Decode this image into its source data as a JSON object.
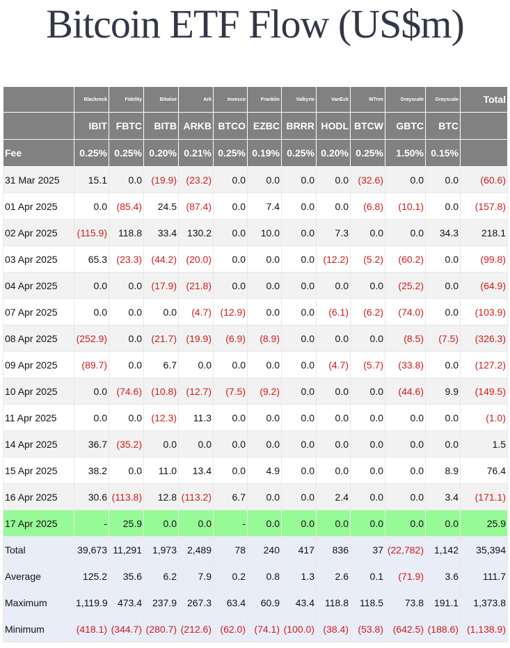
{
  "title": "Bitcoin ETF Flow (US$m)",
  "colors": {
    "negative": "#d11a1a",
    "header_bg": "#818181",
    "highlight_row": "#96fa96",
    "stats_bg": "#e9edf8",
    "title": "#333647"
  },
  "header": {
    "issuers": [
      "Blackrock",
      "Fidelity",
      "Bitwise",
      "Ark",
      "Invesco",
      "Franklin",
      "Valkyrie",
      "VanEck",
      "WTree",
      "Grayscale",
      "Grayscale"
    ],
    "total_label": "Total",
    "tickers": [
      "IBIT",
      "FBTC",
      "BITB",
      "ARKB",
      "BTCO",
      "EZBC",
      "BRRR",
      "HODL",
      "BTCW",
      "GBTC",
      "BTC"
    ],
    "fee_label": "Fee",
    "fees": [
      "0.25%",
      "0.25%",
      "0.20%",
      "0.21%",
      "0.25%",
      "0.19%",
      "0.25%",
      "0.20%",
      "0.25%",
      "1.50%",
      "0.15%"
    ]
  },
  "rows": [
    {
      "date": "31 Mar 2025",
      "values": [
        "15.1",
        "0.0",
        "(19.9)",
        "(23.2)",
        "0.0",
        "0.0",
        "0.0",
        "0.0",
        "(32.6)",
        "0.0",
        "0.0",
        "(60.6)"
      ]
    },
    {
      "date": "01 Apr 2025",
      "values": [
        "0.0",
        "(85.4)",
        "24.5",
        "(87.4)",
        "0.0",
        "7.4",
        "0.0",
        "0.0",
        "(6.8)",
        "(10.1)",
        "0.0",
        "(157.8)"
      ]
    },
    {
      "date": "02 Apr 2025",
      "values": [
        "(115.9)",
        "118.8",
        "33.4",
        "130.2",
        "0.0",
        "10.0",
        "0.0",
        "7.3",
        "0.0",
        "0.0",
        "34.3",
        "218.1"
      ]
    },
    {
      "date": "03 Apr 2025",
      "values": [
        "65.3",
        "(23.3)",
        "(44.2)",
        "(20.0)",
        "0.0",
        "0.0",
        "0.0",
        "(12.2)",
        "(5.2)",
        "(60.2)",
        "0.0",
        "(99.8)"
      ]
    },
    {
      "date": "04 Apr 2025",
      "values": [
        "0.0",
        "0.0",
        "(17.9)",
        "(21.8)",
        "0.0",
        "0.0",
        "0.0",
        "0.0",
        "0.0",
        "(25.2)",
        "0.0",
        "(64.9)"
      ]
    },
    {
      "date": "07 Apr 2025",
      "values": [
        "0.0",
        "0.0",
        "0.0",
        "(4.7)",
        "(12.9)",
        "0.0",
        "0.0",
        "(6.1)",
        "(6.2)",
        "(74.0)",
        "0.0",
        "(103.9)"
      ]
    },
    {
      "date": "08 Apr 2025",
      "values": [
        "(252.9)",
        "0.0",
        "(21.7)",
        "(19.9)",
        "(6.9)",
        "(8.9)",
        "0.0",
        "0.0",
        "0.0",
        "(8.5)",
        "(7.5)",
        "(326.3)"
      ]
    },
    {
      "date": "09 Apr 2025",
      "values": [
        "(89.7)",
        "0.0",
        "6.7",
        "0.0",
        "0.0",
        "0.0",
        "0.0",
        "(4.7)",
        "(5.7)",
        "(33.8)",
        "0.0",
        "(127.2)"
      ]
    },
    {
      "date": "10 Apr 2025",
      "values": [
        "0.0",
        "(74.6)",
        "(10.8)",
        "(12.7)",
        "(7.5)",
        "(9.2)",
        "0.0",
        "0.0",
        "0.0",
        "(44.6)",
        "9.9",
        "(149.5)"
      ]
    },
    {
      "date": "11 Apr 2025",
      "values": [
        "0.0",
        "0.0",
        "(12.3)",
        "11.3",
        "0.0",
        "0.0",
        "0.0",
        "0.0",
        "0.0",
        "0.0",
        "0.0",
        "(1.0)"
      ]
    },
    {
      "date": "14 Apr 2025",
      "values": [
        "36.7",
        "(35.2)",
        "0.0",
        "0.0",
        "0.0",
        "0.0",
        "0.0",
        "0.0",
        "0.0",
        "0.0",
        "0.0",
        "1.5"
      ]
    },
    {
      "date": "15 Apr 2025",
      "values": [
        "38.2",
        "0.0",
        "11.0",
        "13.4",
        "0.0",
        "4.9",
        "0.0",
        "0.0",
        "0.0",
        "0.0",
        "8.9",
        "76.4"
      ]
    },
    {
      "date": "16 Apr 2025",
      "values": [
        "30.6",
        "(113.8)",
        "12.8",
        "(113.2)",
        "6.7",
        "0.0",
        "0.0",
        "2.4",
        "0.0",
        "0.0",
        "3.4",
        "(171.1)"
      ]
    },
    {
      "date": "17 Apr 2025",
      "values": [
        "-",
        "25.9",
        "0.0",
        "0.0",
        "-",
        "0.0",
        "0.0",
        "0.0",
        "0.0",
        "0.0",
        "0.0",
        "25.9"
      ],
      "highlight": true
    }
  ],
  "stats": [
    {
      "label": "Total",
      "values": [
        "39,673",
        "11,291",
        "1,973",
        "2,489",
        "78",
        "240",
        "417",
        "836",
        "37",
        "(22,782)",
        "1,142",
        "35,394"
      ]
    },
    {
      "label": "Average",
      "values": [
        "125.2",
        "35.6",
        "6.2",
        "7.9",
        "0.2",
        "0.8",
        "1.3",
        "2.6",
        "0.1",
        "(71.9)",
        "3.6",
        "111.7"
      ]
    },
    {
      "label": "Maximum",
      "values": [
        "1,119.9",
        "473.4",
        "237.9",
        "267.3",
        "63.4",
        "60.9",
        "43.4",
        "118.8",
        "118.5",
        "73.8",
        "191.1",
        "1,373.8"
      ]
    },
    {
      "label": "Minimum",
      "values": [
        "(418.1)",
        "(344.7)",
        "(280.7)",
        "(212.6)",
        "(62.0)",
        "(74.1)",
        "(100.0)",
        "(38.4)",
        "(53.8)",
        "(642.5)",
        "(188.6)",
        "(1,138.9)"
      ]
    }
  ]
}
